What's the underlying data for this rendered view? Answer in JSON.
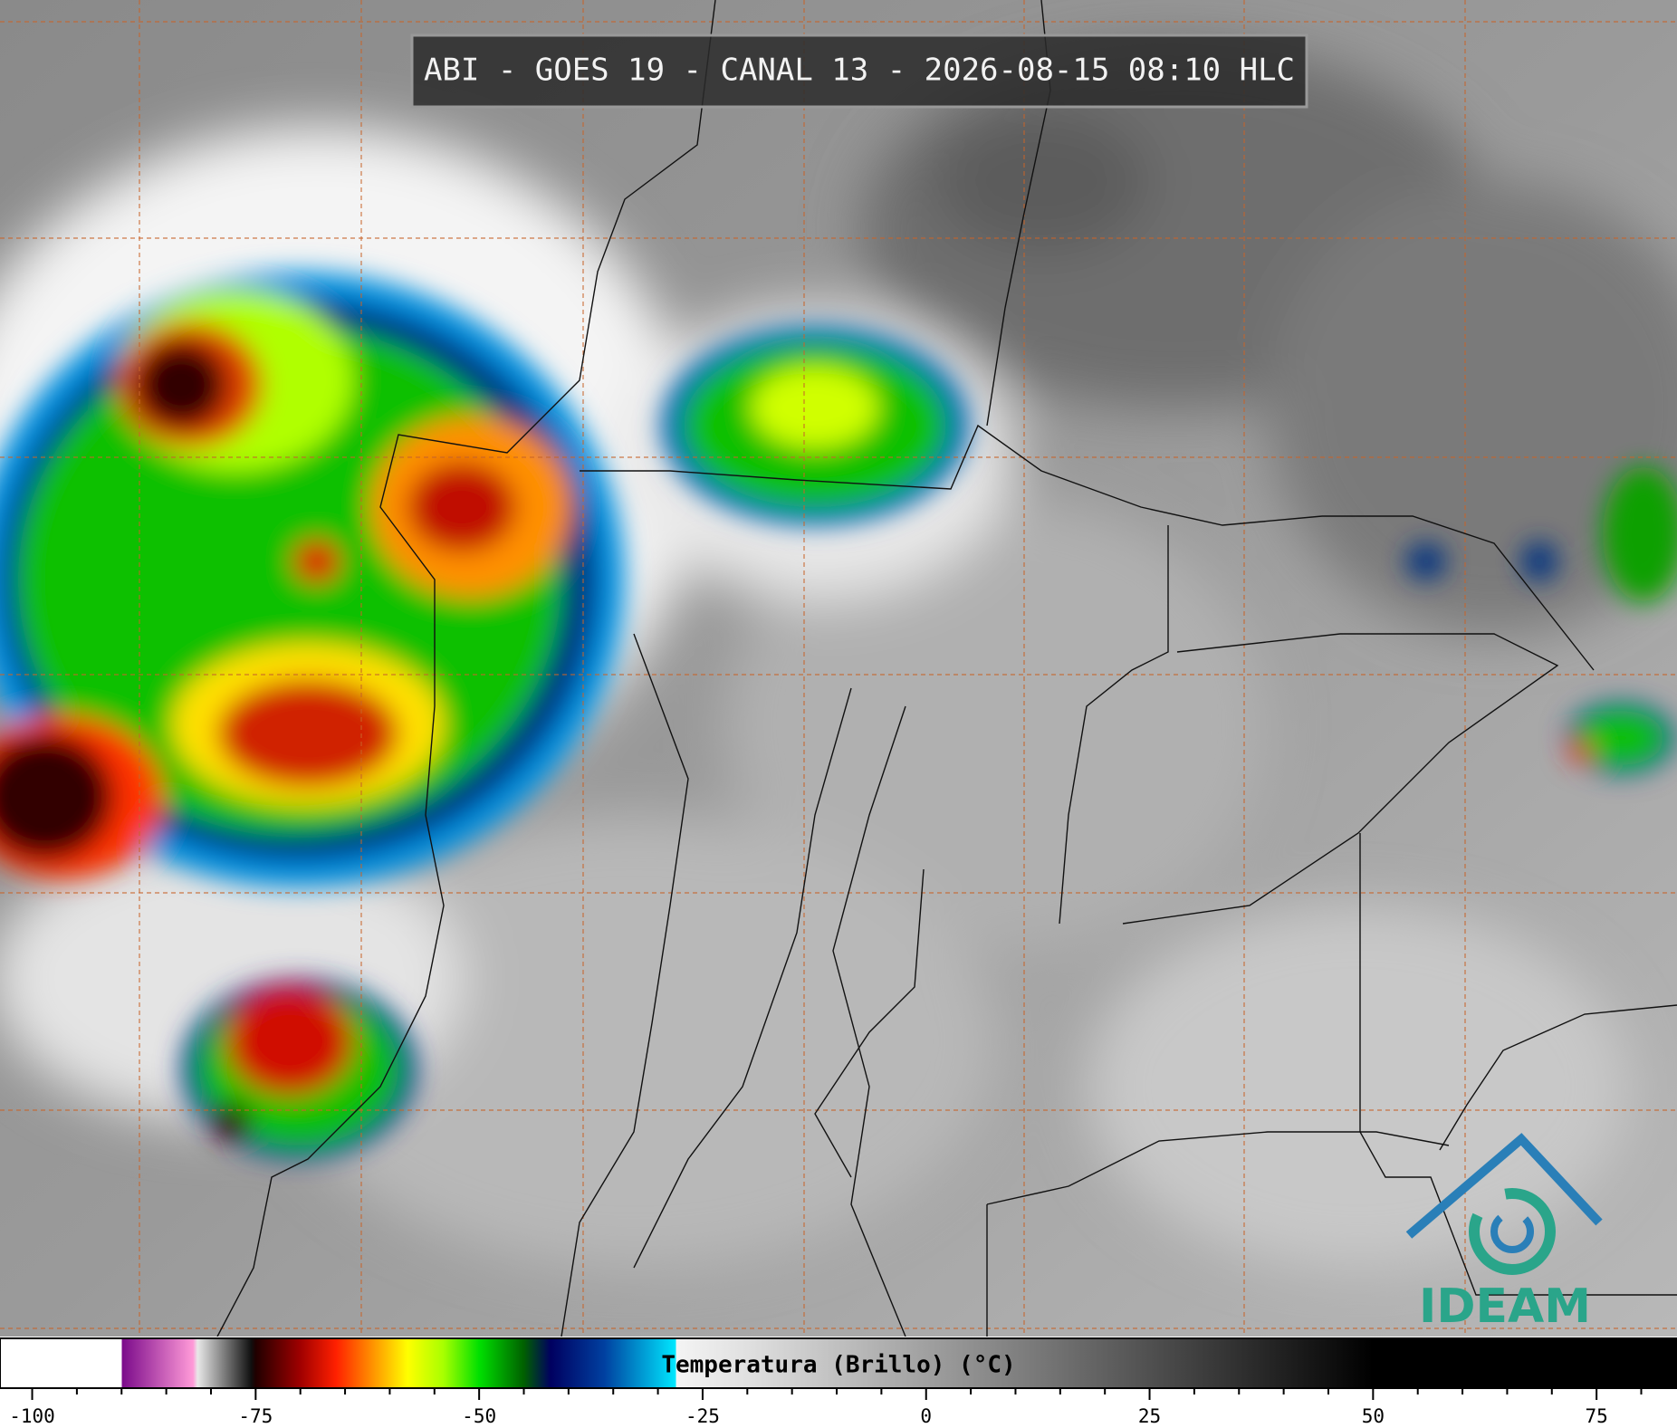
{
  "header": {
    "title": "ABI - GOES 19 - CANAL 13 - 2026-08-15 08:10 HLC"
  },
  "colorbar": {
    "label": "Temperatura (Brillo) (°C)",
    "lim": [
      -103.6,
      84
    ],
    "ticks": [
      -100,
      -75,
      -50,
      -25,
      0,
      25,
      50,
      75
    ],
    "minor_ticks": [
      -95,
      -90,
      -85,
      -80,
      -70,
      -65,
      -60,
      -55,
      -45,
      -40,
      -35,
      -30,
      -20,
      -15,
      -10,
      -5,
      5,
      10,
      15,
      20,
      30,
      35,
      40,
      45,
      55,
      60,
      65,
      70,
      80
    ],
    "stops": [
      {
        "value": -103.6,
        "color": "#ffffff"
      },
      {
        "value": -90,
        "color": "#ffffff"
      },
      {
        "value": -90,
        "color": "#7a0a8a"
      },
      {
        "value": -82,
        "color": "#ff9ad8"
      },
      {
        "value": -81.5,
        "color": "#e8e8e8"
      },
      {
        "value": -75.5,
        "color": "#101010"
      },
      {
        "value": -75,
        "color": "#200000"
      },
      {
        "value": -70,
        "color": "#a00000"
      },
      {
        "value": -66,
        "color": "#ff2000"
      },
      {
        "value": -62,
        "color": "#ff9000"
      },
      {
        "value": -58,
        "color": "#ffff00"
      },
      {
        "value": -54,
        "color": "#a8ff00"
      },
      {
        "value": -50,
        "color": "#00e000"
      },
      {
        "value": -45,
        "color": "#006000"
      },
      {
        "value": -42,
        "color": "#000060"
      },
      {
        "value": -36,
        "color": "#0040a0"
      },
      {
        "value": -28,
        "color": "#00e8ff"
      },
      {
        "value": -28,
        "color": "#f4f4f4"
      },
      {
        "value": -20,
        "color": "#e0e0e0"
      },
      {
        "value": 50,
        "color": "#000000"
      },
      {
        "value": 84,
        "color": "#000000"
      }
    ]
  },
  "logo": {
    "text": "IDEAM"
  }
}
